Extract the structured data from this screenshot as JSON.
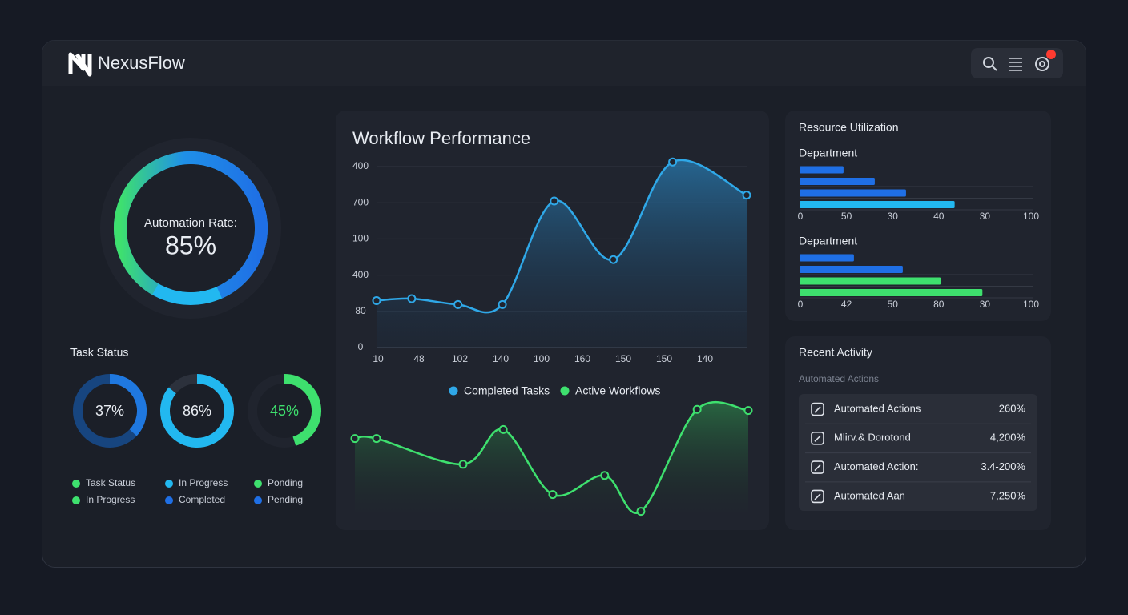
{
  "header": {
    "brand": "NexusFlow"
  },
  "automation": {
    "label": "Automation Rate:",
    "value": 85,
    "value_label": "85%",
    "color": "#1f78e6"
  },
  "task_status": {
    "title": "Task Status",
    "gauges": [
      {
        "value": 37,
        "value_label": "37%",
        "color": "#1f78e0",
        "track": "#17457f"
      },
      {
        "value": 86,
        "value_label": "86%",
        "color": "#22b8f0",
        "track": "#2c313c"
      },
      {
        "value": 45,
        "value_label": "45%",
        "color": "#3ee06e",
        "track": "#20242e"
      }
    ],
    "legend": [
      {
        "name": "Task Status",
        "color": "#3ee06e"
      },
      {
        "name": "In Progress",
        "color": "#22b8f0"
      },
      {
        "name": "Ponding",
        "color": "#3ee06e"
      },
      {
        "name": "In Progress",
        "color": "#3ee06e"
      },
      {
        "name": "Completed",
        "color": "#1f6fe5"
      },
      {
        "name": "Pending",
        "color": "#1f6fe5"
      }
    ]
  },
  "workflow": {
    "title": "Workflow Performance",
    "y_labels": [
      "400",
      "700",
      "100",
      "400",
      "80",
      "0"
    ],
    "x_labels": [
      "10",
      "48",
      "102",
      "140",
      "100",
      "160",
      "150",
      "150",
      "140"
    ],
    "series": [
      {
        "name": "Completed Tasks",
        "color": "#2fa8e8",
        "xlim": [
          0,
          100
        ],
        "ylim": [
          0,
          100
        ],
        "x": [
          0,
          9.5,
          22,
          34,
          48,
          64,
          80,
          100
        ],
        "values": [
          24,
          25,
          22,
          22,
          75,
          45,
          95,
          78
        ]
      },
      {
        "name": "Active Workflows",
        "color": "#3ee06e",
        "xlim": [
          0,
          100
        ],
        "ylim": [
          0,
          100
        ],
        "x": [
          0,
          5.5,
          27.5,
          37.7,
          50.3,
          63.5,
          72.7,
          87,
          100
        ],
        "values": [
          66,
          66,
          43,
          74,
          16,
          33,
          1,
          92,
          91
        ]
      }
    ]
  },
  "resources": {
    "title": "Resource Utilization",
    "groups": [
      {
        "label": "Department",
        "xlim": [
          0,
          100
        ],
        "tick_labels": [
          "0",
          "50",
          "30",
          "40",
          "30",
          "100"
        ],
        "bars": [
          {
            "value": 19,
            "color": "#1f6fe5"
          },
          {
            "value": 32.5,
            "color": "#1f6fe5"
          },
          {
            "value": 46,
            "color": "#1f6fe5"
          },
          {
            "value": 67,
            "color": "#22b8f0"
          }
        ]
      },
      {
        "label": "Department",
        "xlim": [
          0,
          100
        ],
        "tick_labels": [
          "0",
          "42",
          "50",
          "80",
          "30",
          "100"
        ],
        "bars": [
          {
            "value": 23.5,
            "color": "#1f6fe5"
          },
          {
            "value": 44.6,
            "color": "#1f6fe5"
          },
          {
            "value": 61,
            "color": "#3ee06e"
          },
          {
            "value": 79,
            "color": "#3ee06e"
          }
        ]
      }
    ]
  },
  "activity": {
    "title": "Recent Activity",
    "subtitle": "Automated Actions",
    "rows": [
      {
        "label": "Automated Actions",
        "value": "260%"
      },
      {
        "label": "Mlirv.& Dorotond",
        "value": "4,200%"
      },
      {
        "label": "Automated Action:",
        "value": "3.4-200%"
      },
      {
        "label": "Automated Aan",
        "value": "7,250%"
      }
    ]
  }
}
